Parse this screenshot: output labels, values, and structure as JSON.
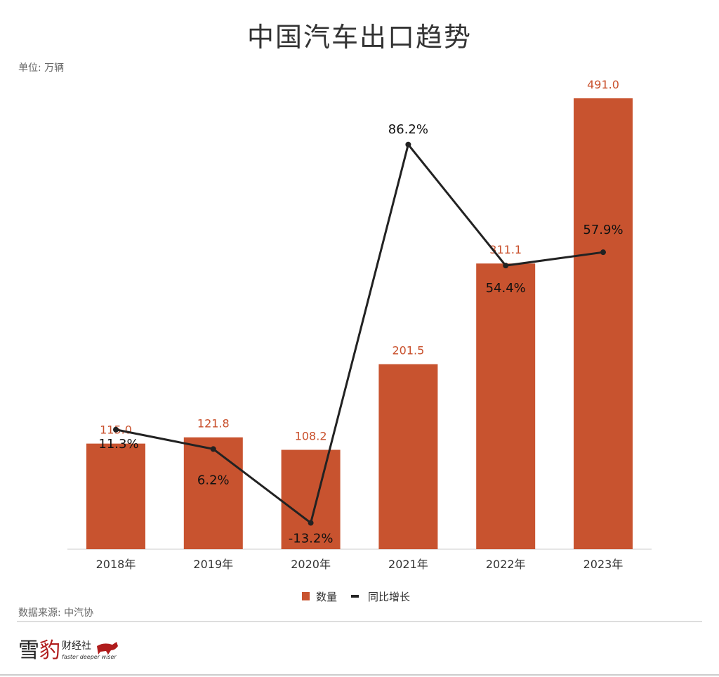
{
  "title": "中国汽车出口趋势",
  "unit_label": "单位: 万辆",
  "source_label": "数据来源: 中汽协",
  "logo": {
    "text": "雪豹财经社",
    "tagline": "faster deeper wiser"
  },
  "colors": {
    "bar": "#c8532f",
    "bar_label": "#c9502c",
    "line": "#222222"
  },
  "chart_data": {
    "type": "bar+line",
    "categories": [
      "2018年",
      "2019年",
      "2020年",
      "2021年",
      "2022年",
      "2023年"
    ],
    "series": [
      {
        "name": "数量",
        "type": "bar",
        "values": [
          115.0,
          121.8,
          108.2,
          201.5,
          311.1,
          491.0
        ],
        "labels": [
          "115.0",
          "121.8",
          "108.2",
          "201.5",
          "311.1",
          "491.0"
        ]
      },
      {
        "name": "同比增长",
        "type": "line",
        "values": [
          11.3,
          6.2,
          -13.2,
          86.2,
          54.4,
          57.9
        ],
        "labels": [
          "11.3%",
          "6.2%",
          "-13.2%",
          "86.2%",
          "54.4%",
          "57.9%"
        ]
      }
    ],
    "legend": "bottom-center",
    "grid": false
  }
}
